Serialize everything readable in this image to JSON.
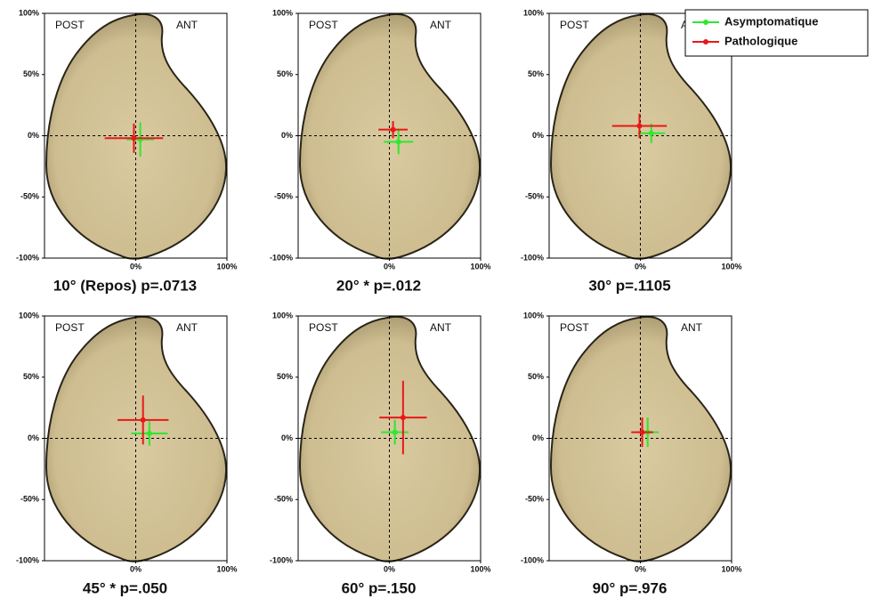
{
  "chart_data": [
    {
      "type": "scatter",
      "title": "10° (Repos) p=.0713",
      "annotations": [
        "POST",
        "ANT"
      ],
      "xlim": [
        -100,
        100
      ],
      "ylim": [
        -100,
        100
      ],
      "xticks": [
        {
          "value": 0,
          "label": "0%"
        },
        {
          "value": 100,
          "label": "100%"
        }
      ],
      "yticks": [
        {
          "value": 100,
          "label": "100%"
        },
        {
          "value": 50,
          "label": "50%"
        },
        {
          "value": 0,
          "label": "0%"
        },
        {
          "value": -50,
          "label": "-50%"
        },
        {
          "value": -100,
          "label": "-100%"
        }
      ],
      "series": [
        {
          "name": "Asymptomatique",
          "color": "#2ee82e",
          "x": [
            5
          ],
          "values": [
            -3
          ],
          "xerr": [
            15
          ],
          "yerr": [
            14
          ]
        },
        {
          "name": "Pathologique",
          "color": "#e81818",
          "x": [
            -2
          ],
          "values": [
            -2
          ],
          "xerr": [
            32
          ],
          "yerr": [
            12
          ]
        }
      ]
    },
    {
      "type": "scatter",
      "title": "20° * p=.012",
      "annotations": [
        "POST",
        "ANT"
      ],
      "xlim": [
        -100,
        100
      ],
      "ylim": [
        -100,
        100
      ],
      "xticks": [
        {
          "value": 0,
          "label": "0%"
        },
        {
          "value": 100,
          "label": "100%"
        }
      ],
      "yticks": [
        {
          "value": 100,
          "label": "100%"
        },
        {
          "value": 50,
          "label": "50%"
        },
        {
          "value": 0,
          "label": "0%"
        },
        {
          "value": -50,
          "label": "-50%"
        },
        {
          "value": -100,
          "label": "-100%"
        }
      ],
      "series": [
        {
          "name": "Asymptomatique",
          "color": "#2ee82e",
          "x": [
            10
          ],
          "values": [
            -5
          ],
          "xerr": [
            16
          ],
          "yerr": [
            10
          ]
        },
        {
          "name": "Pathologique",
          "color": "#e81818",
          "x": [
            4
          ],
          "values": [
            5
          ],
          "xerr": [
            16
          ],
          "yerr": [
            7
          ]
        }
      ]
    },
    {
      "type": "scatter",
      "title": "30° p=.1105",
      "annotations": [
        "POST",
        "ANT"
      ],
      "legend": "top-right",
      "xlim": [
        -100,
        100
      ],
      "ylim": [
        -100,
        100
      ],
      "xticks": [
        {
          "value": 0,
          "label": "0%"
        },
        {
          "value": 100,
          "label": "100%"
        }
      ],
      "yticks": [
        {
          "value": 100,
          "label": "100%"
        },
        {
          "value": 50,
          "label": "50%"
        },
        {
          "value": 0,
          "label": "0%"
        },
        {
          "value": -50,
          "label": "-50%"
        },
        {
          "value": -100,
          "label": "-100%"
        }
      ],
      "series": [
        {
          "name": "Asymptomatique",
          "color": "#2ee82e",
          "x": [
            12
          ],
          "values": [
            2
          ],
          "xerr": [
            15
          ],
          "yerr": [
            8
          ]
        },
        {
          "name": "Pathologique",
          "color": "#e81818",
          "x": [
            -1
          ],
          "values": [
            8
          ],
          "xerr": [
            30
          ],
          "yerr": [
            10
          ]
        }
      ]
    },
    {
      "type": "scatter",
      "title": "45° * p=.050",
      "annotations": [
        "POST",
        "ANT"
      ],
      "xlim": [
        -100,
        100
      ],
      "ylim": [
        -100,
        100
      ],
      "xticks": [
        {
          "value": 0,
          "label": "0%"
        },
        {
          "value": 100,
          "label": "100%"
        }
      ],
      "yticks": [
        {
          "value": 100,
          "label": "100%"
        },
        {
          "value": 50,
          "label": "50%"
        },
        {
          "value": 0,
          "label": "0%"
        },
        {
          "value": -50,
          "label": "-50%"
        },
        {
          "value": -100,
          "label": "-100%"
        }
      ],
      "series": [
        {
          "name": "Asymptomatique",
          "color": "#2ee82e",
          "x": [
            15
          ],
          "values": [
            4
          ],
          "xerr": [
            20
          ],
          "yerr": [
            10
          ]
        },
        {
          "name": "Pathologique",
          "color": "#e81818",
          "x": [
            8
          ],
          "values": [
            15
          ],
          "xerr": [
            28
          ],
          "yerr": [
            20
          ]
        }
      ]
    },
    {
      "type": "scatter",
      "title": "60° p=.150",
      "annotations": [
        "POST",
        "ANT"
      ],
      "xlim": [
        -100,
        100
      ],
      "ylim": [
        -100,
        100
      ],
      "xticks": [
        {
          "value": 0,
          "label": "0%"
        },
        {
          "value": 100,
          "label": "100%"
        }
      ],
      "yticks": [
        {
          "value": 100,
          "label": "100%"
        },
        {
          "value": 50,
          "label": "50%"
        },
        {
          "value": 0,
          "label": "0%"
        },
        {
          "value": -50,
          "label": "-50%"
        },
        {
          "value": -100,
          "label": "-100%"
        }
      ],
      "series": [
        {
          "name": "Asymptomatique",
          "color": "#2ee82e",
          "x": [
            6
          ],
          "values": [
            5
          ],
          "xerr": [
            15
          ],
          "yerr": [
            10
          ]
        },
        {
          "name": "Pathologique",
          "color": "#e81818",
          "x": [
            15
          ],
          "values": [
            17
          ],
          "xerr": [
            26
          ],
          "yerr": [
            30
          ]
        }
      ]
    },
    {
      "type": "scatter",
      "title": "90° p=.976",
      "annotations": [
        "POST",
        "ANT"
      ],
      "xlim": [
        -100,
        100
      ],
      "ylim": [
        -100,
        100
      ],
      "xticks": [
        {
          "value": 0,
          "label": "0%"
        },
        {
          "value": 100,
          "label": "100%"
        }
      ],
      "yticks": [
        {
          "value": 100,
          "label": "100%"
        },
        {
          "value": 50,
          "label": "50%"
        },
        {
          "value": 0,
          "label": "0%"
        },
        {
          "value": -50,
          "label": "-50%"
        },
        {
          "value": -100,
          "label": "-100%"
        }
      ],
      "series": [
        {
          "name": "Asymptomatique",
          "color": "#2ee82e",
          "x": [
            8
          ],
          "values": [
            5
          ],
          "xerr": [
            12
          ],
          "yerr": [
            12
          ]
        },
        {
          "name": "Pathologique",
          "color": "#e81818",
          "x": [
            2
          ],
          "values": [
            5
          ],
          "xerr": [
            12
          ],
          "yerr": [
            12
          ]
        }
      ]
    }
  ]
}
